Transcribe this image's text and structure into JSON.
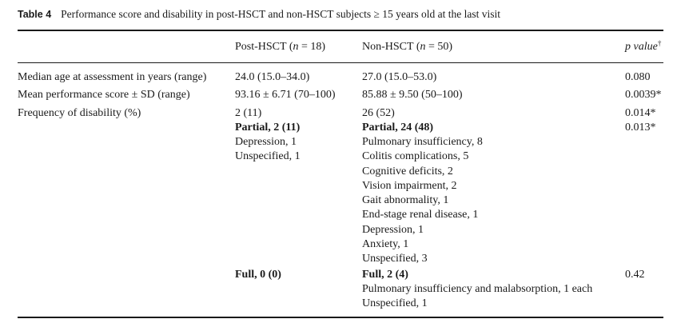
{
  "caption": {
    "label": "Table 4",
    "text": "Performance score and disability in post-HSCT and non-HSCT subjects ≥ 15 years old at the last visit"
  },
  "headers": {
    "col2": "Post-HSCT",
    "col2_n": "(n = 18)",
    "col3": "Non-HSCT",
    "col3_n": "(n = 50)",
    "col4": "p value",
    "col4_mark": "†"
  },
  "rows": {
    "age": {
      "label": "Median age at assessment in years (range)",
      "post": "24.0 (15.0–34.0)",
      "non": "27.0 (15.0–53.0)",
      "p": "0.080"
    },
    "perf": {
      "label": "Mean performance score ± SD (range)",
      "post": "93.16 ± 6.71 (70–100)",
      "non": "85.88 ± 9.50 (50–100)",
      "p": "0.0039*"
    },
    "freq": {
      "label": "Frequency of disability (%)",
      "post": "2 (11)",
      "non": "26 (52)",
      "p": "0.014*"
    },
    "partial": {
      "post": "Partial, 2 (11)",
      "non": "Partial, 24 (48)",
      "p": "0.013*"
    },
    "partial_post_items": [
      "Depression, 1",
      "Unspecified, 1"
    ],
    "partial_non_items": [
      "Pulmonary insufficiency, 8",
      "Colitis complications, 5",
      "Cognitive deficits, 2",
      "Vision impairment, 2",
      "Gait abnormality, 1",
      "End-stage renal disease, 1",
      "Depression, 1",
      "Anxiety, 1",
      "Unspecified, 3"
    ],
    "full": {
      "post": "Full, 0 (0)",
      "non": "Full, 2 (4)",
      "p": "0.42"
    },
    "full_non_items": [
      "Pulmonary insufficiency and malabsorption, 1 each",
      "Unspecified, 1"
    ]
  }
}
